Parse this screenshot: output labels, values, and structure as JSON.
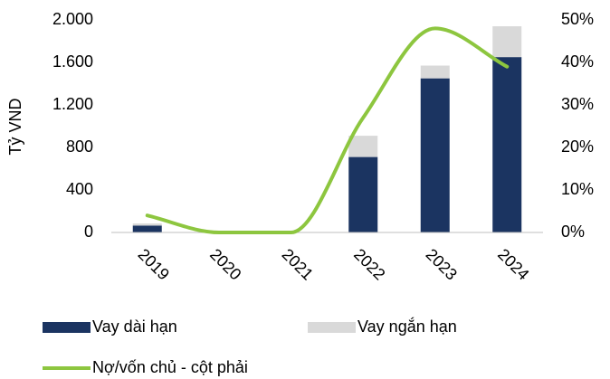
{
  "chart_data": {
    "type": "bar",
    "categories": [
      "2019",
      "2020",
      "2021",
      "2022",
      "2023",
      "2024"
    ],
    "ylabel": "Tỷ VND",
    "ylim": [
      0,
      2000
    ],
    "yticks": [
      0,
      400,
      800,
      {
        "value": 1200,
        "label": "1.200"
      },
      {
        "value": 1600,
        "label": "1.600"
      },
      {
        "value": 2000,
        "label": "2.000"
      }
    ],
    "y2lim": [
      0,
      50
    ],
    "y2ticks": [
      {
        "value": 0,
        "label": "0%"
      },
      {
        "value": 10,
        "label": "10%"
      },
      {
        "value": 20,
        "label": "20%"
      },
      {
        "value": 30,
        "label": "30%"
      },
      {
        "value": 40,
        "label": "40%"
      },
      {
        "value": 50,
        "label": "50%"
      }
    ],
    "stacked": true,
    "series": [
      {
        "name": "Vay dài hạn",
        "color": "#1b3461",
        "values": [
          65,
          0,
          0,
          710,
          1450,
          1650
        ]
      },
      {
        "name": "Vay ngắn hạn",
        "color": "#d9d9d9",
        "values": [
          20,
          0,
          0,
          200,
          120,
          290
        ]
      },
      {
        "name": "Nợ/vốn chủ - cột phải",
        "type": "line",
        "axis": "y2",
        "color": "#8dc63f",
        "values": [
          4,
          0,
          0,
          27,
          48,
          39
        ]
      }
    ]
  }
}
